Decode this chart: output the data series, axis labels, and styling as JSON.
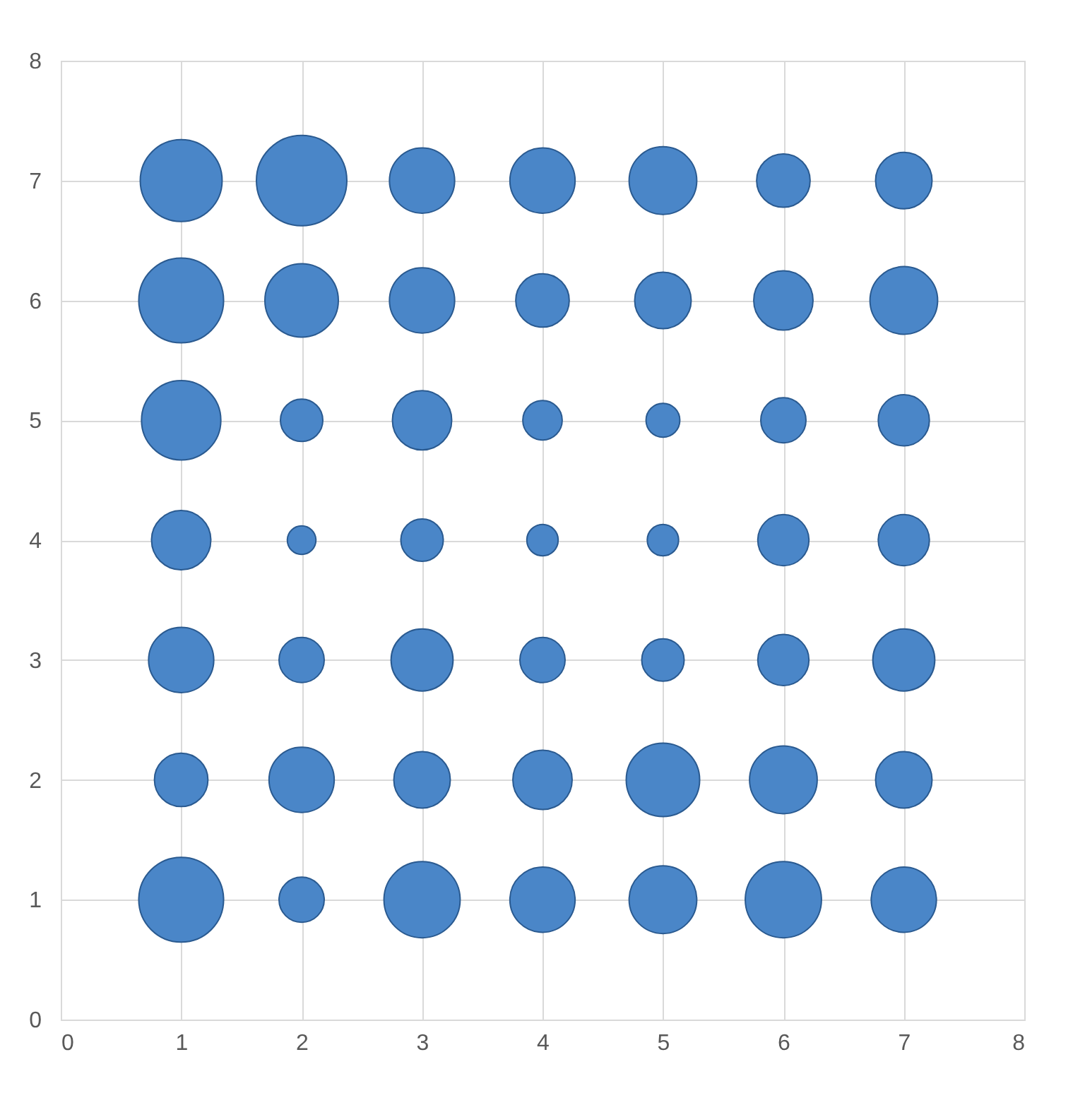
{
  "chart_data": {
    "type": "bubble",
    "grid": true,
    "xlim": [
      0,
      8
    ],
    "ylim": [
      0,
      8
    ],
    "xticks": [
      0,
      1,
      2,
      3,
      4,
      5,
      6,
      7,
      8
    ],
    "yticks": [
      0,
      1,
      2,
      3,
      4,
      5,
      6,
      7,
      8
    ],
    "series": [
      {
        "color": "#4a86c8",
        "x": [
          1,
          2,
          3,
          4,
          5,
          6,
          7,
          1,
          2,
          3,
          4,
          5,
          6,
          7,
          1,
          2,
          3,
          4,
          5,
          6,
          7,
          1,
          2,
          3,
          4,
          5,
          6,
          7,
          1,
          2,
          3,
          4,
          5,
          6,
          7,
          1,
          2,
          3,
          4,
          5,
          6,
          7,
          1,
          2,
          3,
          4,
          5,
          6,
          7
        ],
        "values": [
          7,
          7,
          7,
          7,
          7,
          7,
          7,
          6,
          6,
          6,
          6,
          6,
          6,
          6,
          5,
          5,
          5,
          5,
          5,
          5,
          5,
          4,
          4,
          4,
          4,
          4,
          4,
          4,
          3,
          3,
          3,
          3,
          3,
          3,
          3,
          2,
          2,
          2,
          2,
          2,
          2,
          2,
          1,
          1,
          1,
          1,
          1,
          1,
          1
        ],
        "sizes": [
          0.82,
          1,
          0.52,
          0.52,
          0.56,
          0.35,
          0.39,
          0.88,
          0.66,
          0.52,
          0.35,
          0.39,
          0.43,
          0.56,
          0.77,
          0.22,
          0.43,
          0.19,
          0.14,
          0.25,
          0.32,
          0.43,
          0.1,
          0.22,
          0.12,
          0.12,
          0.32,
          0.32,
          0.52,
          0.25,
          0.47,
          0.25,
          0.22,
          0.32,
          0.47,
          0.35,
          0.52,
          0.39,
          0.43,
          0.66,
          0.56,
          0.39,
          0.88,
          0.25,
          0.71,
          0.52,
          0.56,
          0.71,
          0.52
        ]
      }
    ]
  }
}
